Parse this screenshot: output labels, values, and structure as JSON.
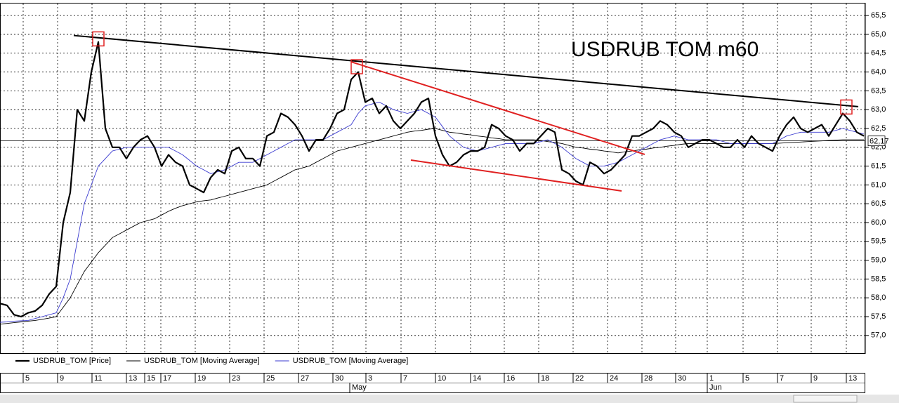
{
  "chart_data": {
    "type": "line",
    "title": "USDRUB   TOM   m60",
    "xlim": [
      0,
      123
    ],
    "ylim": [
      56.53,
      65.82
    ],
    "yticks": [
      {
        "value": 57.0,
        "label": "57,0"
      },
      {
        "value": 57.5,
        "label": "57,5"
      },
      {
        "value": 58.0,
        "label": "58,0"
      },
      {
        "value": 58.5,
        "label": "58,5"
      },
      {
        "value": 59.0,
        "label": "59,0"
      },
      {
        "value": 59.5,
        "label": "59,5"
      },
      {
        "value": 60.0,
        "label": "60,0"
      },
      {
        "value": 60.5,
        "label": "60,5"
      },
      {
        "value": 61.0,
        "label": "61,0"
      },
      {
        "value": 61.5,
        "label": "61,5"
      },
      {
        "value": 62.0,
        "label": "62,0"
      },
      {
        "value": 62.5,
        "label": "62,5"
      },
      {
        "value": 63.0,
        "label": "63,0"
      },
      {
        "value": 63.5,
        "label": "63,5"
      },
      {
        "value": 64.0,
        "label": "64,0"
      },
      {
        "value": 64.5,
        "label": "64,5"
      },
      {
        "value": 65.0,
        "label": "65,0"
      },
      {
        "value": 65.5,
        "label": "65,5"
      }
    ],
    "xticks": [
      {
        "value": 3.3,
        "label": "5"
      },
      {
        "value": 8.2,
        "label": "9"
      },
      {
        "value": 13.1,
        "label": "11"
      },
      {
        "value": 18.0,
        "label": "13"
      },
      {
        "value": 20.6,
        "label": "15"
      },
      {
        "value": 22.9,
        "label": "17"
      },
      {
        "value": 27.8,
        "label": "19"
      },
      {
        "value": 32.7,
        "label": "23"
      },
      {
        "value": 37.6,
        "label": "25"
      },
      {
        "value": 42.5,
        "label": "27"
      },
      {
        "value": 47.4,
        "label": "30"
      },
      {
        "value": 52.1,
        "label": "3"
      },
      {
        "value": 57.1,
        "label": "7"
      },
      {
        "value": 62.0,
        "label": "10"
      },
      {
        "value": 67.0,
        "label": "14"
      },
      {
        "value": 71.8,
        "label": "16"
      },
      {
        "value": 76.7,
        "label": "18"
      },
      {
        "value": 81.6,
        "label": "22"
      },
      {
        "value": 86.5,
        "label": "24"
      },
      {
        "value": 91.4,
        "label": "28"
      },
      {
        "value": 96.2,
        "label": "30"
      },
      {
        "value": 100.7,
        "label": "1"
      },
      {
        "value": 105.8,
        "label": "5"
      },
      {
        "value": 110.7,
        "label": "7"
      },
      {
        "value": 115.5,
        "label": "9"
      },
      {
        "value": 120.5,
        "label": "13"
      }
    ],
    "month_ticks": [
      {
        "value": 49.8,
        "label": "May"
      },
      {
        "value": 100.7,
        "label": "Jun"
      }
    ],
    "grid": true,
    "last_price": {
      "value": 62.17,
      "label": "62,17"
    },
    "series": [
      {
        "name": "USDRUB_TOM [Price]",
        "color": "#000000",
        "width": 2.2,
        "values": [
          57.85,
          57.8,
          57.55,
          57.5,
          57.6,
          57.65,
          57.8,
          58.1,
          58.3,
          60.0,
          60.8,
          63.0,
          62.7,
          64.0,
          64.8,
          62.5,
          62.0,
          62.0,
          61.7,
          62.0,
          62.2,
          62.3,
          62.0,
          61.5,
          61.8,
          61.6,
          61.5,
          61.0,
          60.9,
          60.8,
          61.2,
          61.4,
          61.3,
          61.9,
          62.0,
          61.7,
          61.7,
          61.5,
          62.3,
          62.4,
          62.9,
          62.8,
          62.6,
          62.3,
          61.9,
          62.2,
          62.2,
          62.5,
          62.9,
          63.0,
          63.8,
          64.0,
          63.2,
          63.3,
          62.9,
          63.1,
          62.7,
          62.5,
          62.7,
          62.9,
          63.2,
          63.3,
          62.3,
          61.8,
          61.5,
          61.6,
          61.8,
          61.9,
          61.9,
          62.0,
          62.6,
          62.5,
          62.3,
          62.2,
          61.9,
          62.1,
          62.1,
          62.3,
          62.5,
          62.4,
          61.4,
          61.3,
          61.1,
          61.0,
          61.6,
          61.5,
          61.3,
          61.4,
          61.6,
          61.8,
          62.3,
          62.3,
          62.4,
          62.5,
          62.7,
          62.6,
          62.4,
          62.3,
          62.0,
          62.1,
          62.2,
          62.2,
          62.1,
          62.0,
          62.0,
          62.2,
          62.0,
          62.3,
          62.1,
          62.0,
          61.9,
          62.3,
          62.6,
          62.8,
          62.5,
          62.4,
          62.5,
          62.6,
          62.3,
          62.6,
          62.9,
          62.7,
          62.4,
          62.3
        ]
      },
      {
        "name": "USDRUB_TOM [Moving Average]",
        "color": "#000000",
        "width": 0.9,
        "values": [
          57.3,
          57.32,
          57.34,
          57.36,
          57.38,
          57.4,
          57.43,
          57.46,
          57.5,
          57.75,
          58.0,
          58.35,
          58.7,
          58.95,
          59.2,
          59.4,
          59.6,
          59.7,
          59.8,
          59.9,
          60.0,
          60.05,
          60.1,
          60.2,
          60.3,
          60.38,
          60.45,
          60.5,
          60.55,
          60.58,
          60.6,
          60.65,
          60.7,
          60.75,
          60.8,
          60.85,
          60.9,
          60.95,
          61.0,
          61.1,
          61.2,
          61.3,
          61.4,
          61.45,
          61.5,
          61.6,
          61.7,
          61.8,
          61.9,
          61.95,
          62.0,
          62.05,
          62.1,
          62.15,
          62.2,
          62.25,
          62.3,
          62.35,
          62.4,
          62.43,
          62.45,
          62.48,
          62.5,
          62.45,
          62.4,
          62.38,
          62.35,
          62.33,
          62.3,
          62.28,
          62.25,
          62.23,
          62.2,
          62.2,
          62.2,
          62.2,
          62.2,
          62.18,
          62.15,
          62.13,
          62.1,
          62.05,
          62.0,
          61.98,
          61.95,
          61.93,
          61.9,
          61.88,
          61.85,
          61.88,
          61.9,
          61.93,
          61.95,
          61.98,
          62.0,
          62.03,
          62.05,
          62.08,
          62.1,
          62.1,
          62.1,
          62.1,
          62.1,
          62.1,
          62.1,
          62.1,
          62.1,
          62.1,
          62.1,
          62.1,
          62.1,
          62.11,
          62.12,
          62.13,
          62.14,
          62.15,
          62.16,
          62.17,
          62.18,
          62.19,
          62.2,
          62.2,
          62.2,
          62.2
        ]
      },
      {
        "name": "USDRUB_TOM [Moving Average]",
        "color": "#3a3ad0",
        "width": 0.9,
        "values": [
          57.35,
          57.36,
          57.38,
          57.39,
          57.4,
          57.45,
          57.5,
          57.55,
          57.6,
          58.0,
          58.5,
          59.5,
          60.5,
          61.0,
          61.5,
          61.7,
          61.9,
          61.95,
          62.0,
          62.0,
          62.0,
          62.0,
          62.0,
          62.0,
          62.0,
          61.9,
          61.8,
          61.65,
          61.5,
          61.4,
          61.3,
          61.35,
          61.4,
          61.5,
          61.6,
          61.6,
          61.6,
          61.7,
          61.8,
          61.9,
          62.0,
          62.1,
          62.2,
          62.2,
          62.2,
          62.2,
          62.2,
          62.3,
          62.4,
          62.5,
          62.6,
          62.9,
          63.1,
          63.15,
          63.2,
          63.1,
          63.0,
          62.95,
          62.9,
          62.95,
          63.0,
          62.9,
          62.8,
          62.55,
          62.3,
          62.15,
          62.0,
          61.95,
          61.9,
          61.95,
          62.0,
          62.05,
          62.1,
          62.1,
          62.1,
          62.1,
          62.1,
          62.15,
          62.2,
          62.1,
          62.0,
          61.85,
          61.7,
          61.6,
          61.5,
          61.5,
          61.5,
          61.55,
          61.6,
          61.7,
          61.8,
          61.9,
          62.0,
          62.1,
          62.2,
          62.25,
          62.3,
          62.25,
          62.2,
          62.2,
          62.2,
          62.2,
          62.2,
          62.15,
          62.1,
          62.1,
          62.1,
          62.1,
          62.1,
          62.1,
          62.1,
          62.2,
          62.3,
          62.35,
          62.4,
          62.4,
          62.4,
          62.4,
          62.4,
          62.45,
          62.5,
          62.45,
          62.4,
          62.35
        ]
      }
    ],
    "trend_lines": [
      {
        "color": "#000000",
        "x": [
          10.5,
          122.2
        ],
        "y": [
          64.97,
          63.08
        ]
      },
      {
        "color": "#e02020",
        "x": [
          50.0,
          91.8
        ],
        "y": [
          64.27,
          61.81
        ]
      },
      {
        "color": "#e02020",
        "x": [
          58.5,
          88.5
        ],
        "y": [
          61.66,
          60.84
        ]
      }
    ],
    "markers": [
      {
        "color": "#e02020",
        "x": 14.0,
        "y": 64.88
      },
      {
        "color": "#e02020",
        "x": 50.8,
        "y": 64.14
      },
      {
        "color": "#e02020",
        "x": 120.5,
        "y": 63.07
      }
    ]
  }
}
